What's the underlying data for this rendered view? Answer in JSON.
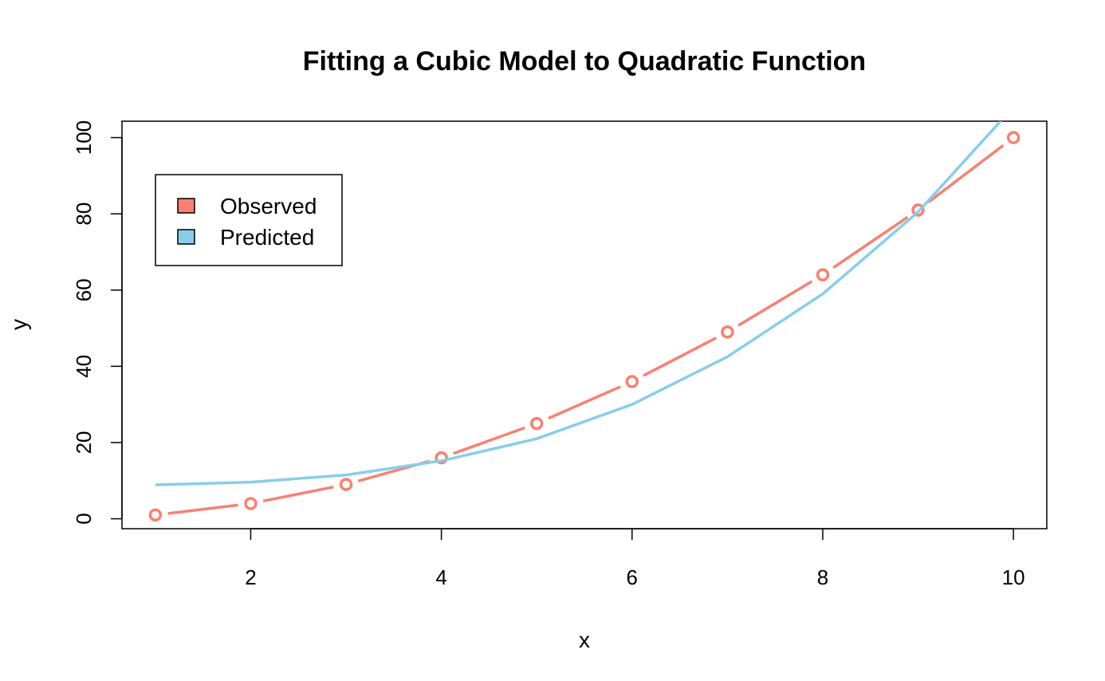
{
  "chart_data": {
    "type": "line",
    "title": "Fitting a Cubic Model to Quadratic Function",
    "xlabel": "x",
    "ylabel": "y",
    "xlim": [
      0.65,
      10.35
    ],
    "ylim": [
      -2.6,
      104.3
    ],
    "x_ticks": [
      2,
      4,
      6,
      8,
      10
    ],
    "y_ticks": [
      0,
      20,
      40,
      60,
      80,
      100
    ],
    "grid": false,
    "legend_position": "top-left",
    "x": [
      1,
      2,
      3,
      4,
      5,
      6,
      7,
      8,
      9,
      10
    ],
    "series": [
      {
        "name": "Observed",
        "color": "#FA8072",
        "markers": "open-circle",
        "values": [
          1,
          4,
          9,
          16,
          25,
          36,
          49,
          64,
          81,
          100
        ]
      },
      {
        "name": "Predicted",
        "color": "#87CEEB",
        "markers": "none",
        "values": [
          8.9,
          9.6,
          11.5,
          15.2,
          21.0,
          30.0,
          42.5,
          59.0,
          80.5,
          108.0
        ]
      }
    ]
  }
}
